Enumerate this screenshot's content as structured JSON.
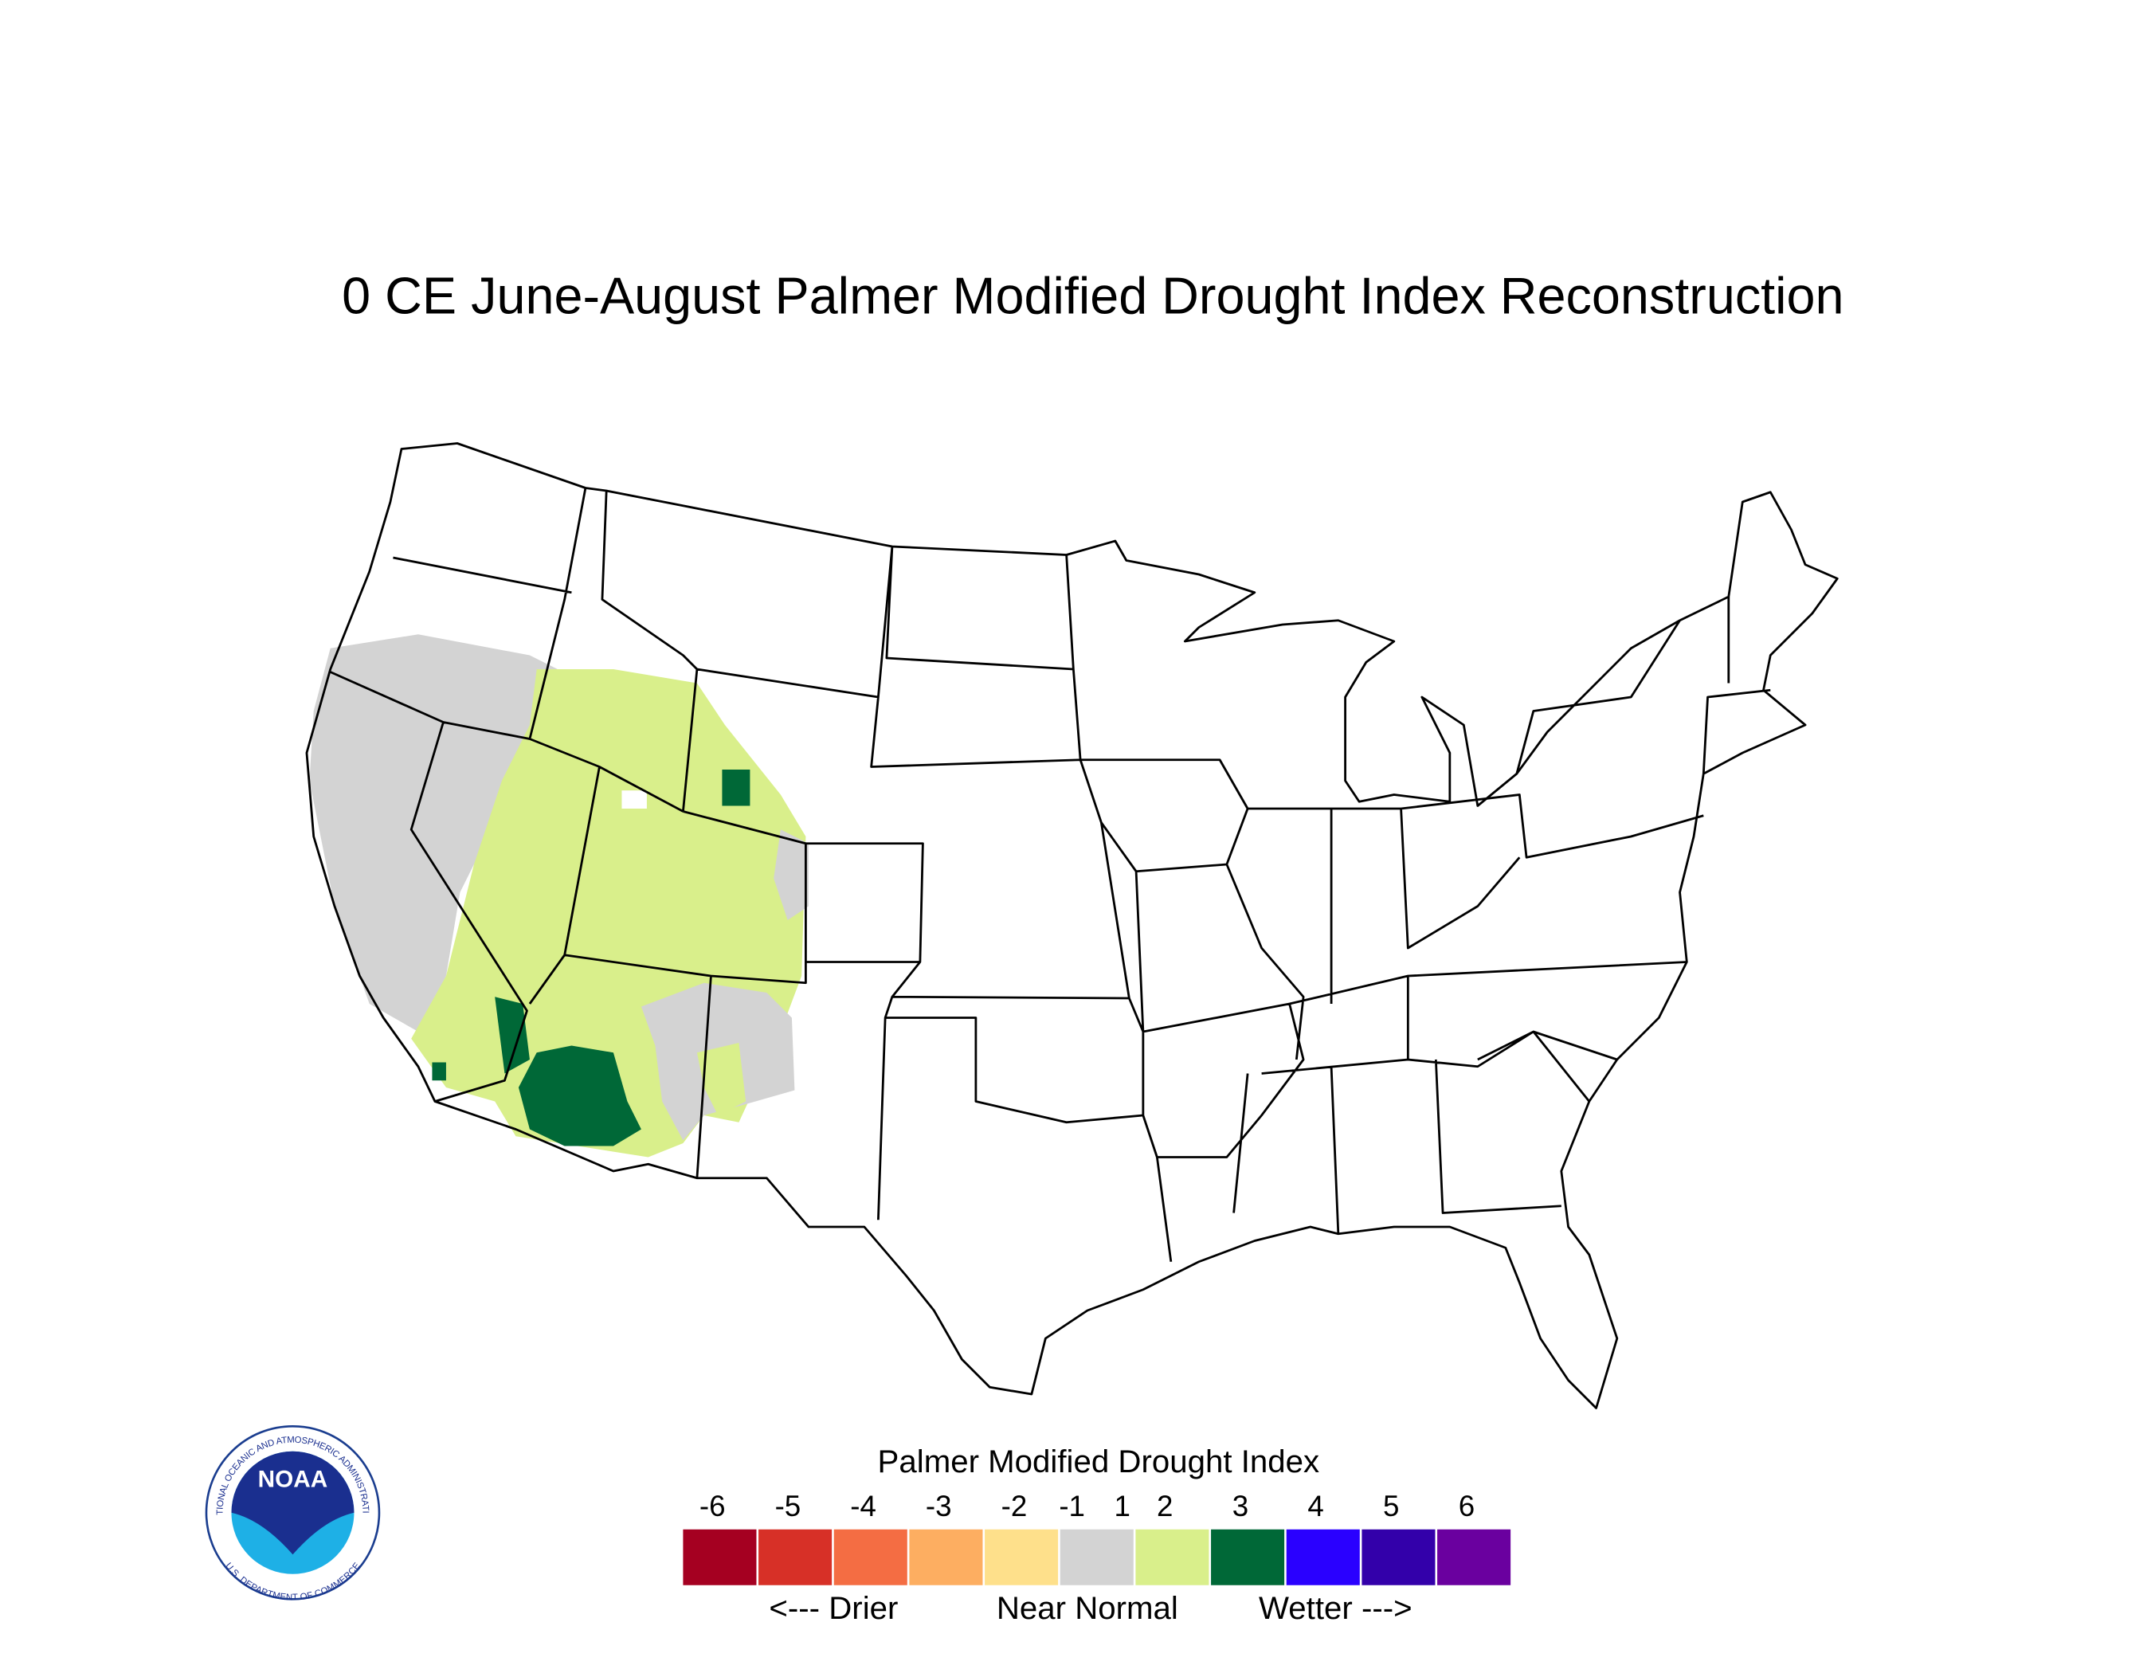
{
  "title": "0 CE  June-August  Palmer Modified Drought Index Reconstruction",
  "legend": {
    "title": "Palmer Modified Drought Index",
    "classes": [
      {
        "labels": [
          "-6"
        ],
        "color": "#a50021"
      },
      {
        "labels": [
          "-5"
        ],
        "color": "#d73027"
      },
      {
        "labels": [
          "-4"
        ],
        "color": "#f46d43"
      },
      {
        "labels": [
          "-3"
        ],
        "color": "#fdae61"
      },
      {
        "labels": [
          "-2"
        ],
        "color": "#fee08b"
      },
      {
        "labels": [
          "-1",
          "1"
        ],
        "color": "#d3d3d3"
      },
      {
        "labels": [
          "2"
        ],
        "color": "#d9ef8b"
      },
      {
        "labels": [
          "3"
        ],
        "color": "#006837"
      },
      {
        "labels": [
          "4"
        ],
        "color": "#2a00ff"
      },
      {
        "labels": [
          "5"
        ],
        "color": "#3300aa"
      },
      {
        "labels": [
          "6"
        ],
        "color": "#6a009f"
      }
    ],
    "captions": [
      "<--- Drier",
      "Near Normal",
      "Wetter --->"
    ]
  },
  "logo": {
    "name": "NOAA",
    "top_text": "NATIONAL OCEANIC AND ATMOSPHERIC ADMINISTRATION",
    "bottom_text": "U.S. DEPARTMENT OF COMMERCE"
  }
}
